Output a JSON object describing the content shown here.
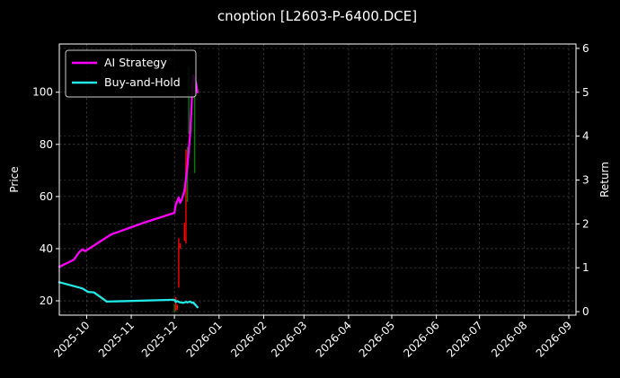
{
  "chart_data": {
    "type": "line",
    "title": "cnoption [L2603-P-6400.DCE]",
    "ylabel_left": "Price",
    "ylabel_right": "Return",
    "xlim": [
      "2025-09-12",
      "2026-09-06"
    ],
    "ylim_left": [
      14.5,
      118.5
    ],
    "ylim_right": [
      -0.08,
      6.1
    ],
    "y_ticks_left": [
      20,
      40,
      60,
      80,
      100
    ],
    "y_ticks_right": [
      0,
      1,
      2,
      3,
      4,
      5,
      6
    ],
    "x_ticks": [
      "2025-10-01",
      "2025-11-01",
      "2025-12-01",
      "2026-01-01",
      "2026-02-01",
      "2026-03-01",
      "2026-04-01",
      "2026-05-01",
      "2026-06-01",
      "2026-07-01",
      "2026-08-01",
      "2026-09-01"
    ],
    "x_tick_labels": [
      "2025-10",
      "2025-11",
      "2025-12",
      "2026-01",
      "2026-02",
      "2026-03",
      "2026-04",
      "2026-05",
      "2026-06",
      "2026-07",
      "2026-08",
      "2026-09"
    ],
    "grid": true,
    "legend_position": "top-left",
    "series": [
      {
        "name": "AI Strategy",
        "color": "#ff00ff",
        "axis": "right",
        "points": [
          [
            "2025-09-12",
            1.02
          ],
          [
            "2025-09-22",
            1.18
          ],
          [
            "2025-09-26",
            1.36
          ],
          [
            "2025-09-28",
            1.42
          ],
          [
            "2025-09-30",
            1.38
          ],
          [
            "2025-10-18",
            1.76
          ],
          [
            "2025-11-10",
            2.03
          ],
          [
            "2025-12-01",
            2.25
          ],
          [
            "2025-12-02",
            2.45
          ],
          [
            "2025-12-03",
            2.52
          ],
          [
            "2025-12-04",
            2.6
          ],
          [
            "2025-12-05",
            2.48
          ],
          [
            "2025-12-06",
            2.55
          ],
          [
            "2025-12-08",
            2.75
          ],
          [
            "2025-12-10",
            3.3
          ],
          [
            "2025-12-12",
            4.1
          ],
          [
            "2025-12-13",
            4.8
          ],
          [
            "2025-12-14",
            5.38
          ],
          [
            "2025-12-15",
            5.33
          ],
          [
            "2025-12-16",
            5.2
          ],
          [
            "2025-12-17",
            5.0
          ]
        ]
      },
      {
        "name": "Buy-and-Hold",
        "color": "#22e8e8",
        "axis": "right",
        "points": [
          [
            "2025-09-12",
            0.67
          ],
          [
            "2025-09-28",
            0.53
          ],
          [
            "2025-10-02",
            0.45
          ],
          [
            "2025-10-06",
            0.44
          ],
          [
            "2025-10-15",
            0.23
          ],
          [
            "2025-12-01",
            0.27
          ],
          [
            "2025-12-02",
            0.22
          ],
          [
            "2025-12-03",
            0.24
          ],
          [
            "2025-12-05",
            0.21
          ],
          [
            "2025-12-07",
            0.2
          ],
          [
            "2025-12-09",
            0.22
          ],
          [
            "2025-12-10",
            0.21
          ],
          [
            "2025-12-12",
            0.23
          ],
          [
            "2025-12-13",
            0.2
          ],
          [
            "2025-12-14",
            0.21
          ],
          [
            "2025-12-17",
            0.1
          ]
        ]
      }
    ],
    "candles": [
      {
        "date": "2025-12-01",
        "low": 15.5,
        "high": 18.5,
        "dir": "up"
      },
      {
        "date": "2025-12-02",
        "low": 16.0,
        "high": 21.5,
        "dir": "down"
      },
      {
        "date": "2025-12-03",
        "low": 16.5,
        "high": 18.5,
        "dir": "down"
      },
      {
        "date": "2025-12-04",
        "low": 25.0,
        "high": 44.0,
        "dir": "down"
      },
      {
        "date": "2025-12-05",
        "low": 40.0,
        "high": 42.0,
        "dir": "down"
      },
      {
        "date": "2025-12-08",
        "low": 43.0,
        "high": 50.0,
        "dir": "down"
      },
      {
        "date": "2025-12-09",
        "low": 42.0,
        "high": 78.0,
        "dir": "down"
      },
      {
        "date": "2025-12-10",
        "low": 58.0,
        "high": 79.0,
        "dir": "up"
      },
      {
        "date": "2025-12-11",
        "low": 84.0,
        "high": 110.0,
        "dir": "up"
      },
      {
        "date": "2025-12-15",
        "low": 69.0,
        "high": 105.0,
        "dir": "up"
      }
    ],
    "candle_colors": {
      "up": "#008000",
      "down": "#ff0000"
    }
  }
}
